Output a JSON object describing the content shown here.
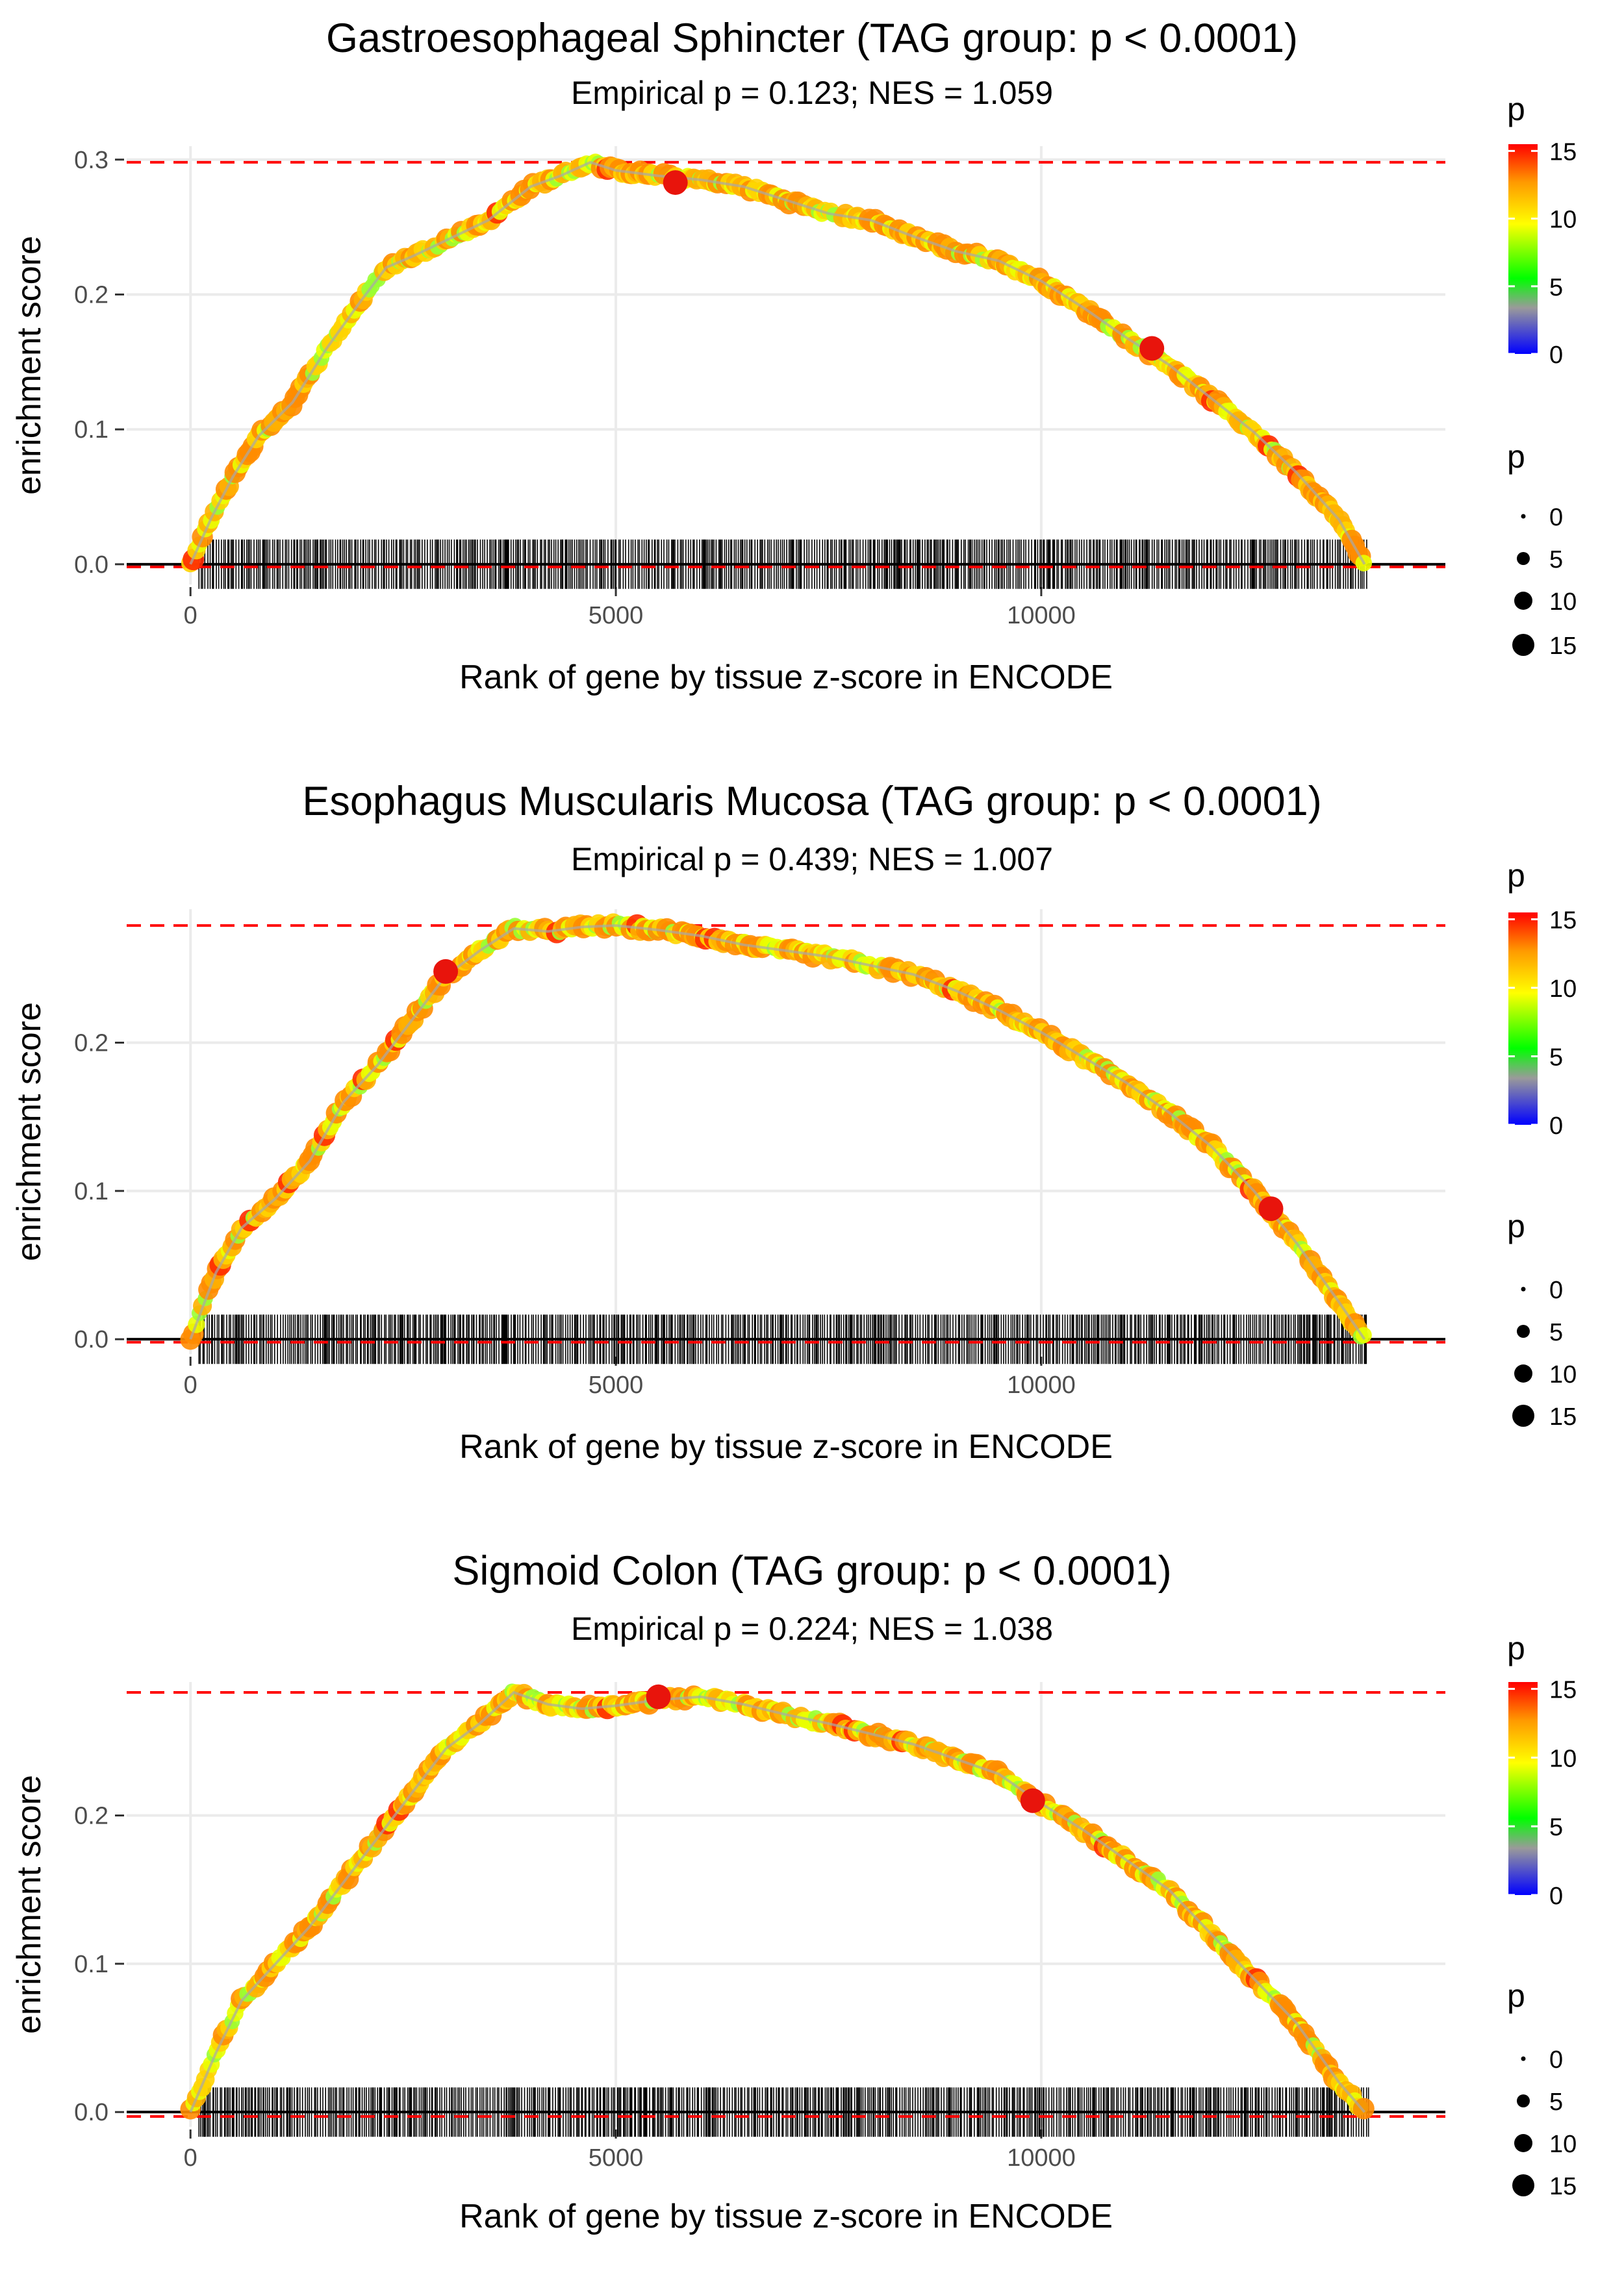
{
  "chart_data": [
    {
      "type": "line",
      "title": "Gastroesophageal Sphincter (TAG group: p < 0.0001)",
      "subtitle": "Empirical p = 0.123; NES = 1.059",
      "xlabel": "Rank of gene by tissue z-score in ENCODE",
      "ylabel": "enrichment score",
      "xlim": [
        -750,
        14750
      ],
      "ylim": [
        -0.015,
        0.31
      ],
      "xticks": [
        0,
        5000,
        10000
      ],
      "xtick_labels": [
        "0",
        "5000",
        "10000"
      ],
      "yticks": [
        0.0,
        0.1,
        0.2,
        0.3
      ],
      "ytick_labels": [
        "0.0",
        "0.1",
        "0.2",
        "0.3"
      ],
      "max_es": 0.298,
      "min_es": -0.002,
      "curve": {
        "x": [
          0,
          250,
          500,
          800,
          1200,
          1600,
          2000,
          2300,
          2600,
          3000,
          3500,
          4000,
          4350,
          4700,
          5000,
          5500,
          6000,
          6500,
          7000,
          7500,
          8000,
          8500,
          9000,
          9500,
          10000,
          10500,
          11000,
          11500,
          12000,
          12500,
          13000,
          13500,
          13800
        ],
        "y": [
          0.0,
          0.035,
          0.065,
          0.095,
          0.12,
          0.16,
          0.195,
          0.22,
          0.228,
          0.24,
          0.255,
          0.28,
          0.288,
          0.298,
          0.292,
          0.288,
          0.285,
          0.28,
          0.27,
          0.26,
          0.255,
          0.243,
          0.232,
          0.225,
          0.21,
          0.19,
          0.168,
          0.148,
          0.123,
          0.098,
          0.068,
          0.033,
          0.0
        ]
      },
      "highlight_points": [
        {
          "x": 5700,
          "y": 0.283
        },
        {
          "x": 11300,
          "y": 0.16
        }
      ],
      "color_legend": {
        "title": "p",
        "labels": [
          "15",
          "10",
          "5",
          "0"
        ],
        "values": [
          15,
          10,
          5,
          0
        ]
      },
      "size_legend": {
        "title": "p",
        "labels": [
          "0",
          "5",
          "10",
          "15"
        ],
        "values": [
          0,
          5,
          10,
          15
        ]
      }
    },
    {
      "type": "line",
      "title": "Esophagus Muscularis Mucosa (TAG group: p < 0.0001)",
      "subtitle": "Empirical p = 0.439; NES = 1.007",
      "xlabel": "Rank of gene by tissue z-score in ENCODE",
      "ylabel": "enrichment score",
      "xlim": [
        -750,
        14750
      ],
      "ylim": [
        -0.01,
        0.29
      ],
      "xticks": [
        0,
        5000,
        10000
      ],
      "xtick_labels": [
        "0",
        "5000",
        "10000"
      ],
      "yticks": [
        0.0,
        0.1,
        0.2
      ],
      "ytick_labels": [
        "0.0",
        "0.1",
        "0.2"
      ],
      "max_es": 0.279,
      "min_es": -0.002,
      "curve": {
        "x": [
          0,
          300,
          600,
          1000,
          1400,
          1800,
          2200,
          2600,
          3000,
          3400,
          3800,
          4200,
          4600,
          5000,
          5500,
          6000,
          6500,
          7000,
          7500,
          8000,
          8500,
          9000,
          9500,
          10000,
          10500,
          11000,
          11500,
          12000,
          12500,
          13000,
          13500,
          13800
        ],
        "y": [
          0.0,
          0.045,
          0.075,
          0.095,
          0.12,
          0.16,
          0.185,
          0.215,
          0.245,
          0.262,
          0.277,
          0.275,
          0.278,
          0.279,
          0.276,
          0.272,
          0.266,
          0.262,
          0.258,
          0.252,
          0.246,
          0.235,
          0.222,
          0.207,
          0.19,
          0.173,
          0.153,
          0.13,
          0.1,
          0.065,
          0.025,
          0.0
        ]
      },
      "highlight_points": [
        {
          "x": 3000,
          "y": 0.248
        },
        {
          "x": 12700,
          "y": 0.088
        }
      ],
      "color_legend": {
        "title": "p",
        "labels": [
          "15",
          "10",
          "5",
          "0"
        ],
        "values": [
          15,
          10,
          5,
          0
        ]
      },
      "size_legend": {
        "title": "p",
        "labels": [
          "0",
          "5",
          "10",
          "15"
        ],
        "values": [
          0,
          5,
          10,
          15
        ]
      }
    },
    {
      "type": "line",
      "title": "Sigmoid Colon (TAG group: p < 0.0001)",
      "subtitle": "Empirical p = 0.224; NES = 1.038",
      "xlabel": "Rank of gene by tissue z-score in ENCODE",
      "ylabel": "enrichment score",
      "xlim": [
        -750,
        14750
      ],
      "ylim": [
        -0.01,
        0.29
      ],
      "xticks": [
        0,
        5000,
        10000
      ],
      "xtick_labels": [
        "0",
        "5000",
        "10000"
      ],
      "yticks": [
        0.0,
        0.1,
        0.2
      ],
      "ytick_labels": [
        "0.0",
        "0.1",
        "0.2"
      ],
      "max_es": 0.283,
      "min_es": -0.003,
      "curve": {
        "x": [
          0,
          300,
          600,
          1000,
          1400,
          1800,
          2200,
          2600,
          3000,
          3400,
          3800,
          4200,
          4600,
          5000,
          5500,
          6000,
          6500,
          7000,
          7500,
          8000,
          8500,
          9000,
          9500,
          10000,
          10500,
          11000,
          11500,
          12000,
          12500,
          13000,
          13500,
          13800
        ],
        "y": [
          0.0,
          0.04,
          0.075,
          0.1,
          0.125,
          0.155,
          0.185,
          0.215,
          0.245,
          0.262,
          0.283,
          0.275,
          0.272,
          0.274,
          0.278,
          0.28,
          0.275,
          0.268,
          0.262,
          0.255,
          0.248,
          0.238,
          0.228,
          0.208,
          0.19,
          0.17,
          0.15,
          0.12,
          0.09,
          0.06,
          0.02,
          0.0
        ]
      },
      "highlight_points": [
        {
          "x": 5500,
          "y": 0.28
        },
        {
          "x": 9900,
          "y": 0.21
        }
      ],
      "color_legend": {
        "title": "p",
        "labels": [
          "15",
          "10",
          "5",
          "0"
        ],
        "values": [
          15,
          10,
          5,
          0
        ]
      },
      "size_legend": {
        "title": "p",
        "labels": [
          "0",
          "5",
          "10",
          "15"
        ],
        "values": [
          0,
          5,
          10,
          15
        ]
      }
    }
  ]
}
